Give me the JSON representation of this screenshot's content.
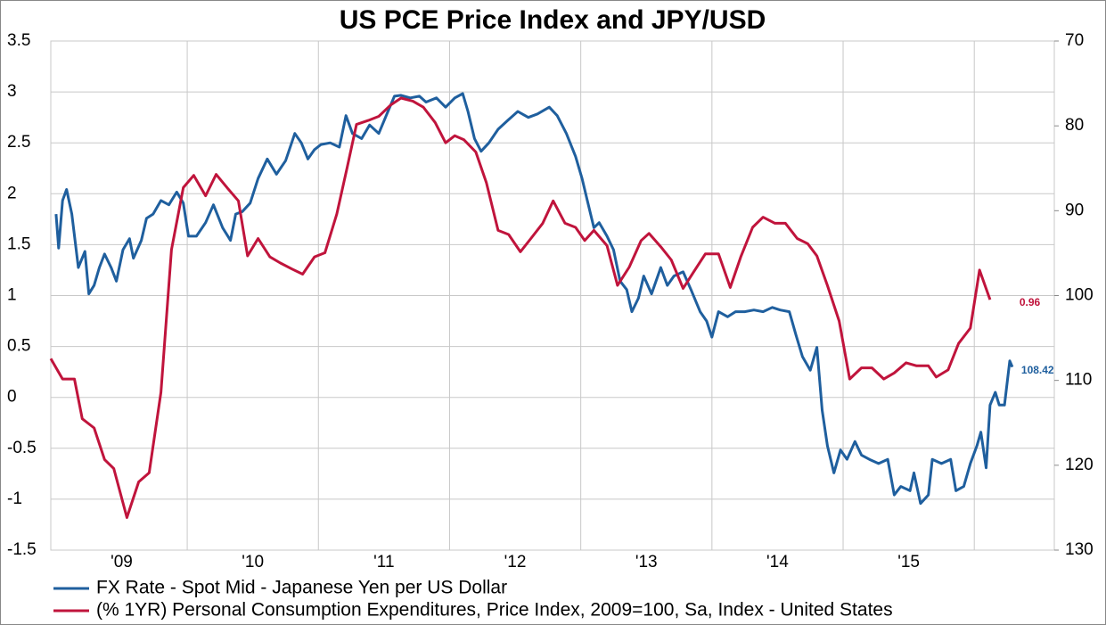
{
  "chart_data": {
    "type": "line",
    "title": "US PCE Price Index and JPY/USD",
    "xlim": [
      2008.96,
      2016.61
    ],
    "xticks": [
      {
        "value": 2009.5,
        "label": "'09"
      },
      {
        "value": 2010.5,
        "label": "'10"
      },
      {
        "value": 2011.5,
        "label": "'11"
      },
      {
        "value": 2012.5,
        "label": "'12"
      },
      {
        "value": 2013.5,
        "label": "'13"
      },
      {
        "value": 2014.5,
        "label": "'14"
      },
      {
        "value": 2015.5,
        "label": "'15"
      }
    ],
    "xgrid": [
      2010,
      2011,
      2012,
      2013,
      2014,
      2015,
      2016
    ],
    "ylim": [
      -1.5,
      3.5
    ],
    "yticks": [
      3.5,
      3,
      2.5,
      2,
      1.5,
      1,
      0.5,
      0,
      -0.5,
      -1,
      -1.5
    ],
    "y2lim": [
      130,
      70
    ],
    "y2ticks": [
      70,
      80,
      90,
      100,
      110,
      120,
      130
    ],
    "grid": true,
    "legend": "bottom",
    "series": [
      {
        "name": "FX Rate - Spot Mid - Japanese Yen per US Dollar",
        "color": "#1f5f9e",
        "axis": "y2",
        "x": [
          2009,
          2009.02,
          2009.05,
          2009.08,
          2009.12,
          2009.17,
          2009.22,
          2009.25,
          2009.29,
          2009.33,
          2009.37,
          2009.42,
          2009.46,
          2009.51,
          2009.56,
          2009.59,
          2009.65,
          2009.69,
          2009.74,
          2009.8,
          2009.86,
          2009.92,
          2009.97,
          2010.01,
          2010.07,
          2010.14,
          2010.2,
          2010.27,
          2010.33,
          2010.37,
          2010.42,
          2010.48,
          2010.54,
          2010.61,
          2010.68,
          2010.75,
          2010.82,
          2010.87,
          2010.92,
          2010.97,
          2011.02,
          2011.09,
          2011.16,
          2011.21,
          2011.26,
          2011.33,
          2011.39,
          2011.46,
          2011.53,
          2011.58,
          2011.63,
          2011.7,
          2011.77,
          2011.82,
          2011.9,
          2011.97,
          2012.04,
          2012.1,
          2012.14,
          2012.19,
          2012.24,
          2012.3,
          2012.37,
          2012.44,
          2012.52,
          2012.6,
          2012.67,
          2012.76,
          2012.82,
          2012.89,
          2012.96,
          2013.01,
          2013.05,
          2013.1,
          2013.14,
          2013.2,
          2013.25,
          2013.3,
          2013.35,
          2013.39,
          2013.44,
          2013.48,
          2013.54,
          2013.61,
          2013.66,
          2013.71,
          2013.78,
          2013.84,
          2013.91,
          2013.96,
          2014,
          2014.05,
          2014.12,
          2014.18,
          2014.25,
          2014.32,
          2014.39,
          2014.46,
          2014.52,
          2014.59,
          2014.64,
          2014.69,
          2014.75,
          2014.8,
          2014.84,
          2014.88,
          2014.93,
          2014.98,
          2015.03,
          2015.09,
          2015.14,
          2015.2,
          2015.27,
          2015.34,
          2015.39,
          2015.44,
          2015.51,
          2015.54,
          2015.59,
          2015.65,
          2015.68,
          2015.75,
          2015.82,
          2015.86,
          2015.92,
          2015.97,
          2016.02,
          2016.05,
          2016.09,
          2016.12,
          2016.16,
          2016.19,
          2016.23,
          2016.27,
          2016.29
        ],
        "values": [
          90.4,
          94.4,
          88.8,
          87.5,
          90.4,
          96.7,
          94.8,
          99.8,
          98.8,
          96.7,
          95.1,
          96.7,
          98.3,
          94.6,
          93.3,
          95.6,
          93.5,
          90.9,
          90.4,
          88.8,
          89.3,
          87.8,
          89.1,
          93.0,
          93.0,
          91.4,
          89.3,
          92.0,
          93.5,
          90.4,
          90.1,
          89.1,
          86.2,
          83.9,
          85.7,
          84.1,
          80.9,
          82.0,
          83.9,
          82.8,
          82.2,
          82.0,
          82.5,
          78.8,
          80.9,
          81.5,
          79.9,
          80.9,
          78.3,
          76.5,
          76.4,
          76.7,
          76.5,
          77.2,
          76.7,
          77.8,
          76.7,
          76.2,
          78.3,
          81.5,
          83.0,
          82.0,
          80.4,
          79.4,
          78.3,
          79.0,
          78.6,
          77.8,
          78.8,
          80.9,
          83.6,
          86.2,
          88.8,
          92.0,
          91.4,
          93.0,
          94.6,
          98.3,
          99.3,
          101.9,
          100.3,
          97.7,
          99.8,
          96.7,
          98.8,
          97.7,
          97.2,
          99.3,
          101.9,
          103.0,
          104.9,
          101.9,
          102.5,
          101.9,
          101.9,
          101.7,
          101.9,
          101.4,
          101.7,
          101.9,
          104.6,
          107.2,
          108.8,
          106.1,
          113.5,
          117.7,
          120.9,
          118.2,
          119.3,
          117.2,
          118.8,
          119.3,
          119.8,
          119.3,
          123.5,
          122.5,
          123.0,
          120.9,
          124.5,
          123.5,
          119.3,
          119.8,
          119.3,
          123.0,
          122.5,
          119.8,
          117.7,
          116.1,
          120.3,
          112.9,
          111.4,
          112.9,
          112.9,
          107.7,
          108.42
        ],
        "end_label": "108.42"
      },
      {
        "name": "(% 1YR) Personal Consumption Expenditures, Price Index, 2009=100, Sa, Index - United States",
        "color": "#c0143c",
        "x": [
          2008.96,
          2009.05,
          2009.14,
          2009.2,
          2009.29,
          2009.37,
          2009.44,
          2009.54,
          2009.63,
          2009.71,
          2009.8,
          2009.88,
          2009.97,
          2010.05,
          2010.14,
          2010.22,
          2010.31,
          2010.39,
          2010.46,
          2010.54,
          2010.63,
          2010.71,
          2010.8,
          2010.88,
          2010.97,
          2011.05,
          2011.14,
          2011.22,
          2011.29,
          2011.38,
          2011.46,
          2011.55,
          2011.63,
          2011.72,
          2011.8,
          2011.89,
          2011.97,
          2012.04,
          2012.11,
          2012.2,
          2012.28,
          2012.37,
          2012.45,
          2012.54,
          2012.62,
          2012.71,
          2012.79,
          2012.88,
          2012.96,
          2013.03,
          2013.1,
          2013.2,
          2013.28,
          2013.37,
          2013.46,
          2013.52,
          2013.61,
          2013.69,
          2013.78,
          2013.86,
          2013.95,
          2014.05,
          2014.14,
          2014.22,
          2014.31,
          2014.39,
          2014.48,
          2014.56,
          2014.65,
          2014.73,
          2014.8,
          2014.88,
          2014.97,
          2015.05,
          2015.14,
          2015.22,
          2015.31,
          2015.39,
          2015.48,
          2015.56,
          2015.65,
          2015.71,
          2015.8,
          2015.88,
          2015.97,
          2016.04,
          2016.12
        ],
        "values": [
          0.38,
          0.18,
          0.18,
          -0.21,
          -0.3,
          -0.61,
          -0.7,
          -1.18,
          -0.83,
          -0.74,
          0.05,
          1.45,
          2.06,
          2.18,
          1.98,
          2.19,
          2.05,
          1.93,
          1.39,
          1.56,
          1.38,
          1.32,
          1.26,
          1.21,
          1.38,
          1.42,
          1.8,
          2.26,
          2.68,
          2.72,
          2.76,
          2.87,
          2.94,
          2.91,
          2.85,
          2.7,
          2.5,
          2.57,
          2.53,
          2.41,
          2.11,
          1.64,
          1.6,
          1.43,
          1.56,
          1.71,
          1.93,
          1.71,
          1.67,
          1.54,
          1.64,
          1.49,
          1.1,
          1.28,
          1.54,
          1.61,
          1.48,
          1.35,
          1.07,
          1.23,
          1.41,
          1.41,
          1.08,
          1.38,
          1.67,
          1.77,
          1.71,
          1.71,
          1.56,
          1.51,
          1.39,
          1.1,
          0.75,
          0.18,
          0.29,
          0.29,
          0.18,
          0.24,
          0.34,
          0.31,
          0.31,
          0.2,
          0.27,
          0.53,
          0.68,
          1.25,
          0.96
        ],
        "end_label": "0.96"
      }
    ]
  }
}
